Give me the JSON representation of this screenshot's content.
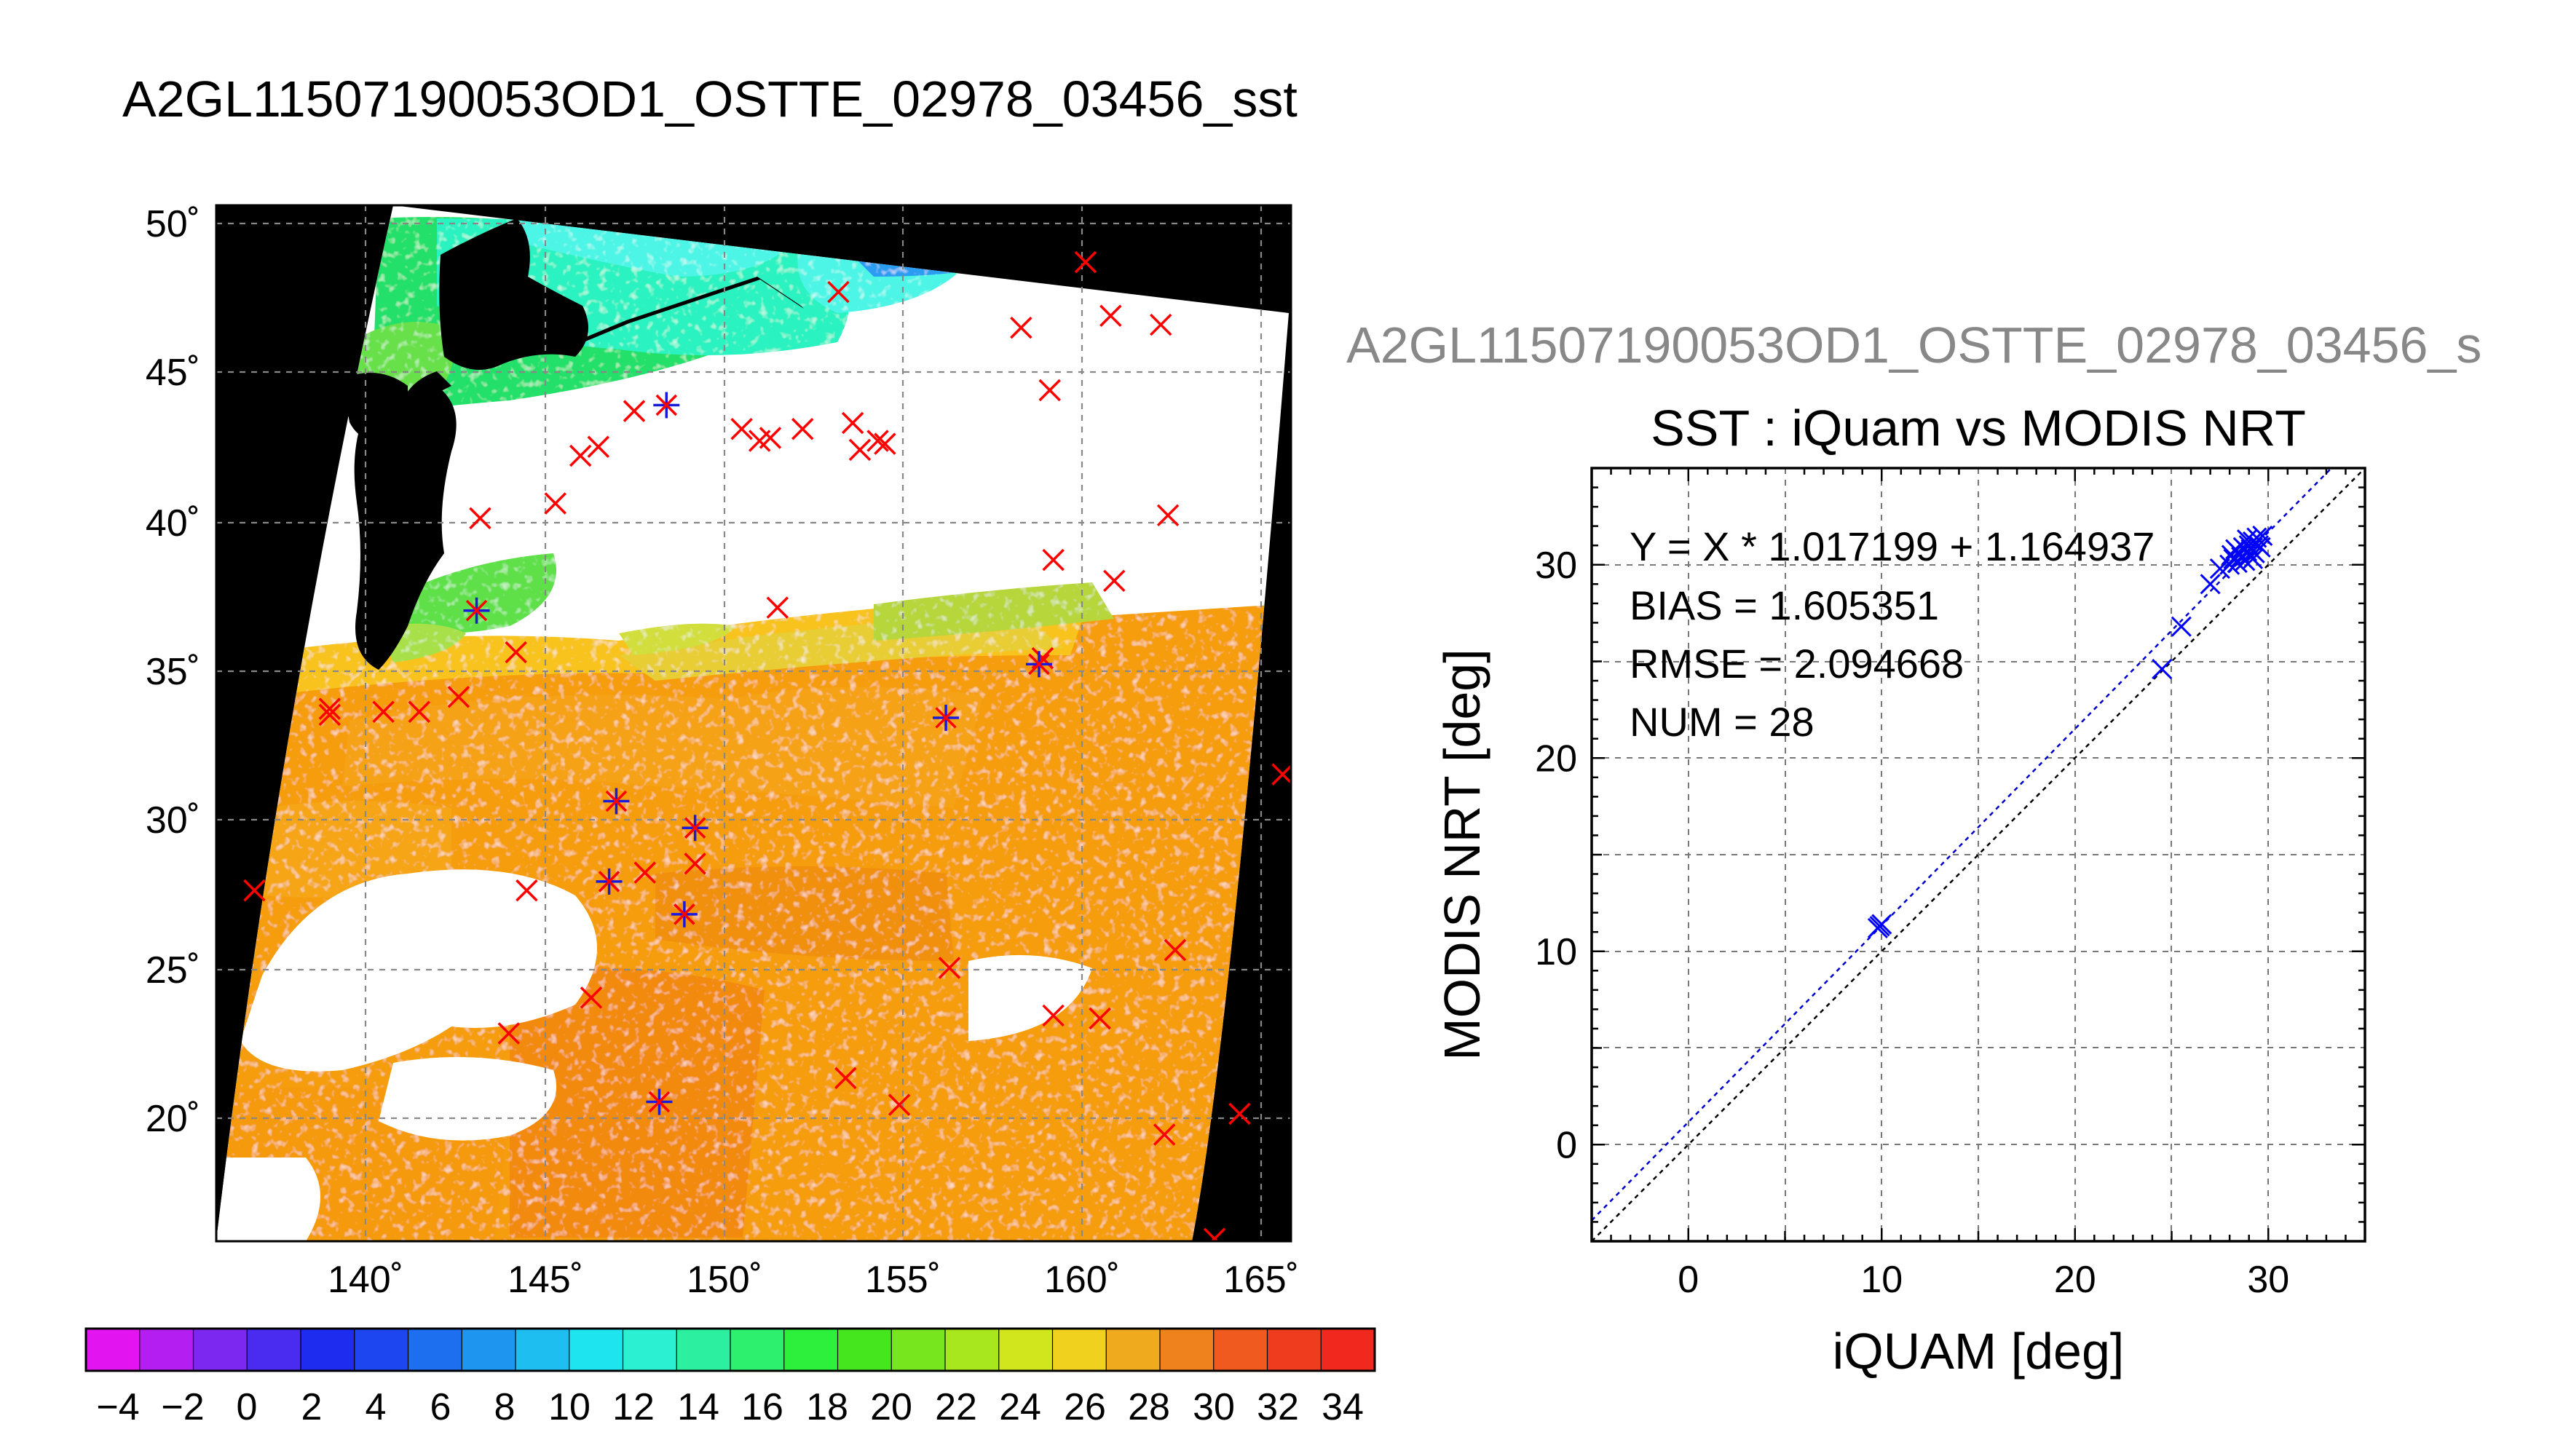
{
  "page_title": "A2GL11507190053OD1_OSTTE_02978_03456_sst",
  "map": {
    "lon_ticks": [
      "140˚",
      "145˚",
      "150˚",
      "155˚",
      "160˚",
      "165˚"
    ],
    "lat_ticks": [
      "50˚",
      "45˚",
      "40˚",
      "35˚",
      "30˚",
      "25˚",
      "20˚"
    ],
    "colorbar_labels": [
      "−4",
      "−2",
      "0",
      "2",
      "4",
      "6",
      "8",
      "10",
      "12",
      "14",
      "16",
      "18",
      "20",
      "22",
      "24",
      "26",
      "28",
      "30",
      "32",
      "34"
    ],
    "colors": {
      "land": "#000000",
      "missing": "#ffffff",
      "cross_marker": "#ff0000",
      "star_marker": "#1a1adc",
      "grid": "#888888"
    }
  },
  "scatter_panel": {
    "overlay_title": "A2GL11507190053OD1_OSTTE_02978_03456_s",
    "title": "SST : iQuam vs MODIS NRT",
    "stats": {
      "regression": "Y = X * 1.017199 + 1.164937",
      "bias": "BIAS = 1.605351",
      "rmse": "RMSE = 2.094668",
      "num": "NUM = 28"
    },
    "colors": {
      "points": "#0000ff",
      "fit_line": "#0000cc",
      "one_to_one": "#000000",
      "grid": "#777777"
    }
  },
  "chart_data": [
    {
      "type": "scatter",
      "title": "SST : iQuam vs MODIS NRT",
      "xlabel": "iQUAM [deg]",
      "ylabel": "MODIS NRT [deg]",
      "xlim": [
        -5,
        35
      ],
      "ylim": [
        -5,
        35
      ],
      "x_ticks": [
        0,
        10,
        20,
        30
      ],
      "y_ticks": [
        0,
        10,
        20,
        30
      ],
      "grid": true,
      "fit": {
        "slope": 1.017199,
        "intercept": 1.164937
      },
      "points": [
        {
          "x": 9.8,
          "y": 11.2
        },
        {
          "x": 10.0,
          "y": 11.4
        },
        {
          "x": 9.9,
          "y": 11.3
        },
        {
          "x": 24.5,
          "y": 24.6
        },
        {
          "x": 25.5,
          "y": 26.8
        },
        {
          "x": 27.0,
          "y": 29.0
        },
        {
          "x": 27.5,
          "y": 29.8
        },
        {
          "x": 28.0,
          "y": 30.0
        },
        {
          "x": 28.2,
          "y": 30.3
        },
        {
          "x": 28.4,
          "y": 30.1
        },
        {
          "x": 28.5,
          "y": 30.6
        },
        {
          "x": 28.6,
          "y": 30.4
        },
        {
          "x": 28.7,
          "y": 30.9
        },
        {
          "x": 28.8,
          "y": 30.2
        },
        {
          "x": 28.9,
          "y": 30.7
        },
        {
          "x": 29.0,
          "y": 31.0
        },
        {
          "x": 29.0,
          "y": 30.5
        },
        {
          "x": 29.1,
          "y": 30.8
        },
        {
          "x": 29.2,
          "y": 31.2
        },
        {
          "x": 29.3,
          "y": 30.6
        },
        {
          "x": 29.4,
          "y": 31.4
        },
        {
          "x": 29.5,
          "y": 31.0
        },
        {
          "x": 29.6,
          "y": 30.9
        },
        {
          "x": 28.3,
          "y": 30.8
        },
        {
          "x": 28.1,
          "y": 30.5
        },
        {
          "x": 29.2,
          "y": 30.3
        },
        {
          "x": 28.9,
          "y": 31.3
        },
        {
          "x": 29.7,
          "y": 31.5
        }
      ]
    },
    {
      "type": "heatmap",
      "xlim": [
        135.5,
        166
      ],
      "ylim": [
        16,
        50.5
      ],
      "colorbar_range": [
        -5,
        35
      ],
      "cross_markers": [
        [
          136.9,
          27.6
        ],
        [
          139.0,
          33.5
        ],
        [
          139.0,
          33.7
        ],
        [
          140.5,
          33.6
        ],
        [
          141.5,
          33.6
        ],
        [
          142.6,
          34.1
        ],
        [
          143.2,
          40.1
        ],
        [
          144.2,
          35.6
        ],
        [
          144.5,
          27.6
        ],
        [
          145.3,
          40.6
        ],
        [
          146.0,
          42.2
        ],
        [
          146.3,
          24.0
        ],
        [
          146.5,
          42.5
        ],
        [
          144.0,
          22.8
        ],
        [
          147.8,
          28.2
        ],
        [
          149.2,
          28.5
        ],
        [
          150.5,
          43.1
        ],
        [
          151.0,
          42.7
        ],
        [
          151.3,
          42.8
        ],
        [
          151.5,
          37.1
        ],
        [
          152.2,
          43.1
        ],
        [
          153.2,
          47.7
        ],
        [
          153.6,
          43.3
        ],
        [
          153.8,
          42.4
        ],
        [
          154.3,
          42.7
        ],
        [
          154.5,
          42.6
        ],
        [
          153.4,
          21.3
        ],
        [
          154.9,
          20.4
        ],
        [
          156.3,
          25.0
        ],
        [
          158.3,
          46.5
        ],
        [
          158.9,
          35.4
        ],
        [
          159.1,
          44.4
        ],
        [
          159.2,
          38.7
        ],
        [
          159.2,
          23.4
        ],
        [
          160.1,
          48.7
        ],
        [
          160.5,
          23.3
        ],
        [
          160.8,
          46.9
        ],
        [
          160.9,
          38.0
        ],
        [
          162.2,
          46.6
        ],
        [
          162.4,
          40.2
        ],
        [
          162.6,
          25.6
        ],
        [
          162.3,
          19.4
        ],
        [
          163.7,
          15.9
        ],
        [
          164.4,
          20.1
        ],
        [
          165.6,
          31.5
        ],
        [
          147.5,
          43.7
        ]
      ],
      "star_markers": [
        [
          143.1,
          37.0
        ],
        [
          147.0,
          30.6
        ],
        [
          148.4,
          43.9
        ],
        [
          149.2,
          29.7
        ],
        [
          146.8,
          27.9
        ],
        [
          148.9,
          26.8
        ],
        [
          148.2,
          20.5
        ],
        [
          158.8,
          35.2
        ],
        [
          156.2,
          33.4
        ]
      ]
    }
  ]
}
